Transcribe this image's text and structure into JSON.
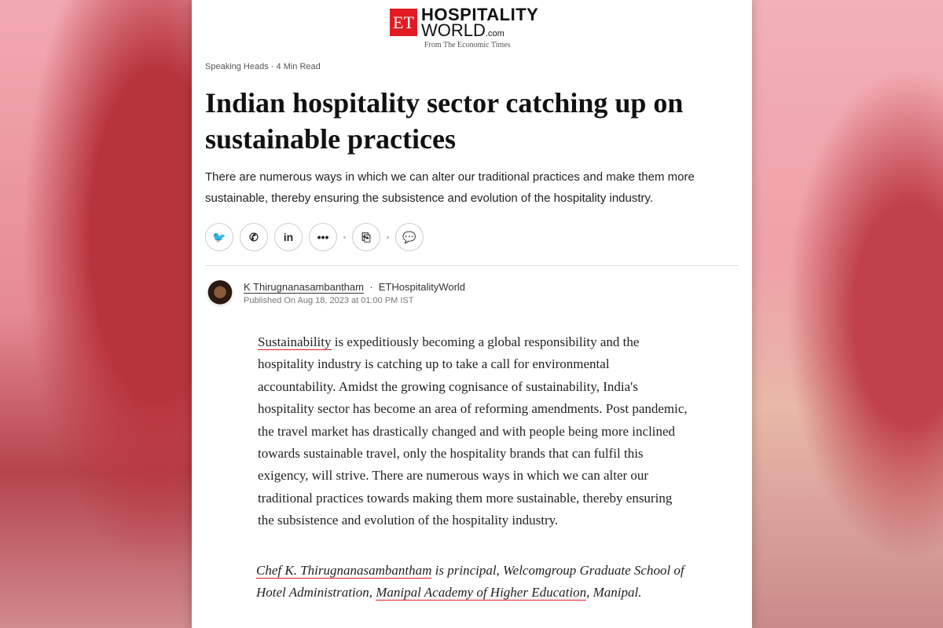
{
  "logo": {
    "badge": "ET",
    "line1": "HOSPITALITY",
    "line2": "WORLD",
    "suffix": ".com",
    "tagline": "From The Economic Times"
  },
  "article": {
    "category": "Speaking Heads",
    "read_time": "4 Min Read",
    "title": "Indian hospitality sector catching up on sustainable practices",
    "summary": "There are numerous ways in which we can alter our traditional practices and make them more sustainable, thereby ensuring the subsistence and evolution of the hospitality industry.",
    "share_icons": [
      "twitter-icon",
      "whatsapp-icon",
      "linkedin-icon",
      "more-icon",
      "bookmark-add-icon",
      "comment-icon"
    ],
    "author": "K Thirugnanasambantham",
    "publisher": "ETHospitalityWorld",
    "published": "Published On Aug 18, 2023 at 01:00 PM IST",
    "body_link": "Sustainability",
    "body_rest": " is expeditiously becoming a global responsibility and the hospitality industry is catching up to take a call for environmental accountability. Amidst the growing cognisance of sustainability, India's hospitality sector has become an area of reforming amendments. Post pandemic, the travel market has drastically changed and with people being more inclined towards sustainable travel, only the hospitality brands that can fulfil this exigency, will strive. There are numerous ways in which we can alter our traditional practices towards making them more sustainable, thereby ensuring the subsistence and evolution of the hospitality industry.",
    "credit_link1": "Chef K. Thirugnanasambantham",
    "credit_mid": " is principal, Welcomgroup Graduate School of Hotel Administration, ",
    "credit_link2": "Manipal Academy of Higher Education",
    "credit_end": ", Manipal."
  },
  "colors": {
    "brand": "#e21b23"
  }
}
